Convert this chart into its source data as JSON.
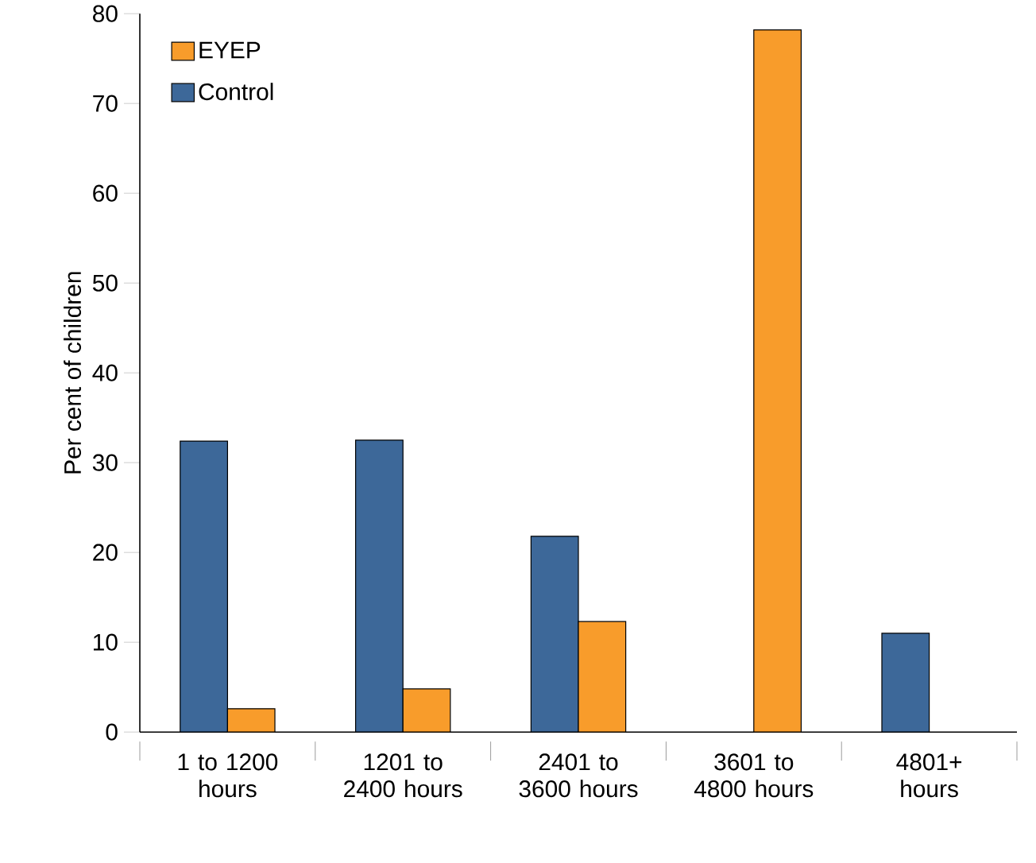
{
  "chart_data": {
    "type": "bar",
    "ylabel": "Per cent of children",
    "categories": [
      "1 to 1200 hours",
      "1201 to 2400 hours",
      "2401 to 3600 hours",
      "3601 to 4800 hours",
      "4801+ hours"
    ],
    "series": [
      {
        "name": "Control",
        "color": "#3d6899",
        "values": [
          32.4,
          32.5,
          21.8,
          null,
          11.0
        ]
      },
      {
        "name": "EYEP",
        "color": "#f89c2b",
        "values": [
          2.6,
          4.8,
          12.3,
          78.2,
          null
        ]
      }
    ],
    "ylim": [
      0,
      80
    ],
    "yticks": [
      0,
      10,
      20,
      30,
      40,
      50,
      60,
      70,
      80
    ],
    "legend": "top left"
  }
}
